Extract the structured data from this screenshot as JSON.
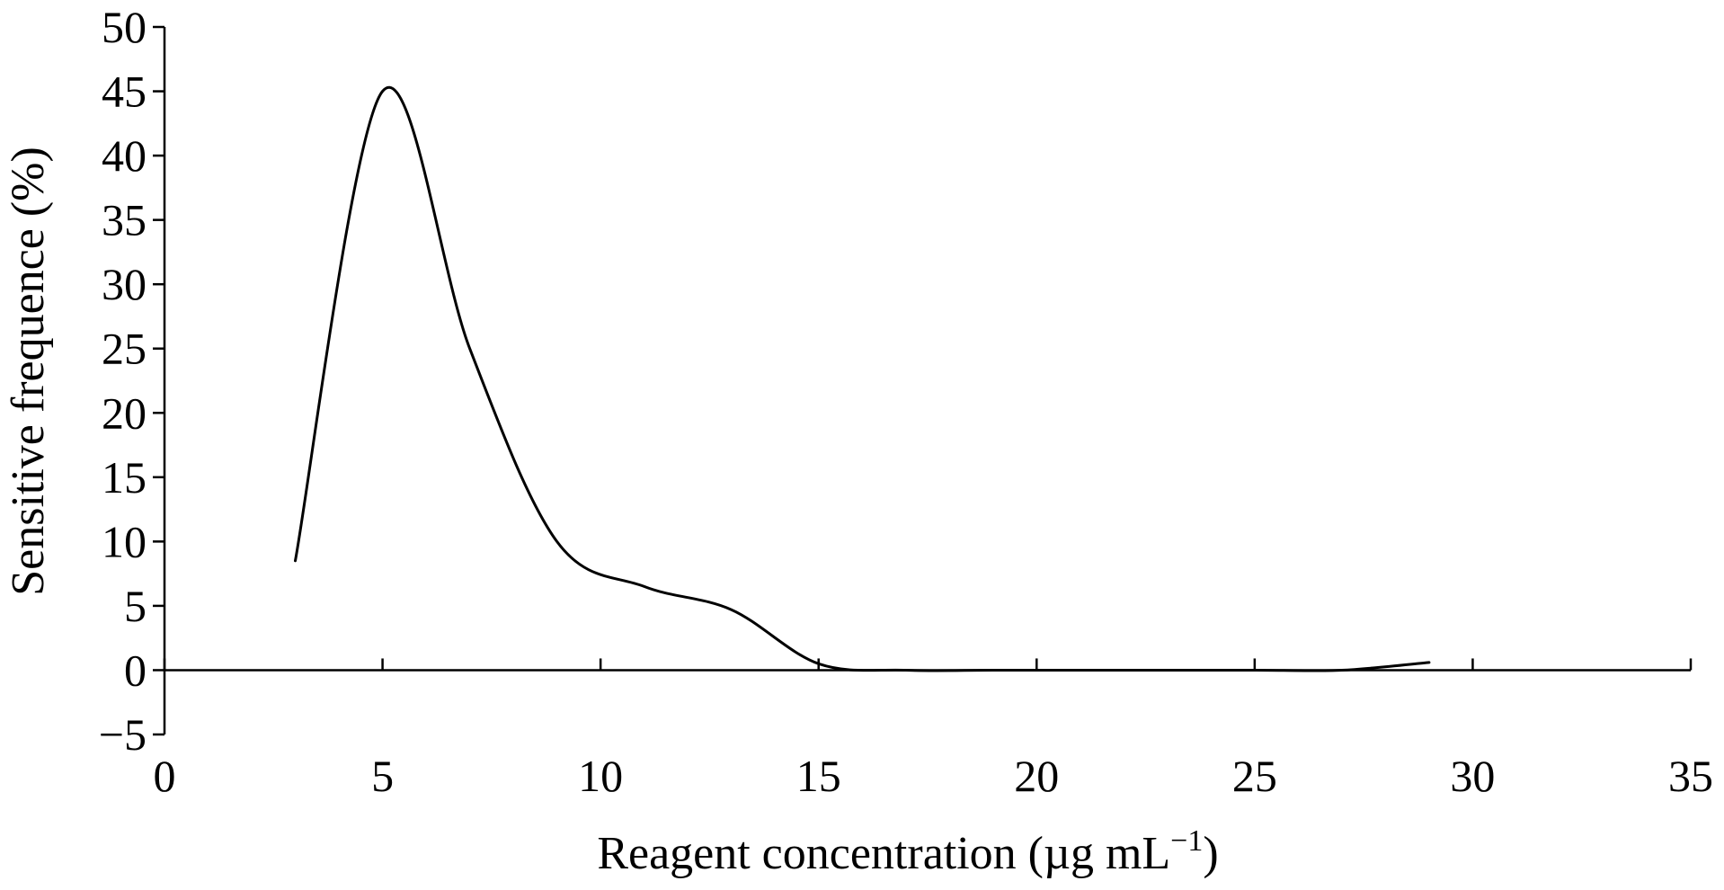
{
  "chart_data": {
    "type": "line",
    "title": "",
    "xlabel": "Reagent concentration (µg mL",
    "xlabel_superscript": "−1",
    "xlabel_close": ")",
    "ylabel": "Sensitive frequence (%)",
    "xlim": [
      0,
      35
    ],
    "ylim": [
      -5,
      50
    ],
    "xticks": [
      0,
      5,
      10,
      15,
      20,
      25,
      30,
      35
    ],
    "yticks": [
      -5,
      0,
      5,
      10,
      15,
      20,
      25,
      30,
      35,
      40,
      45,
      50
    ],
    "xtick_labels": [
      "0",
      "5",
      "10",
      "15",
      "20",
      "25",
      "30",
      "35"
    ],
    "ytick_labels": [
      "−5",
      "0",
      "5",
      "10",
      "15",
      "20",
      "25",
      "30",
      "35",
      "40",
      "45",
      "50"
    ],
    "grid": false,
    "legend": "none",
    "line_color": "#000000",
    "series": [
      {
        "x": [
          3,
          5,
          7,
          9,
          11,
          13,
          15,
          17,
          19,
          21,
          23,
          25,
          27,
          29
        ],
        "y": [
          8.5,
          45,
          25,
          10,
          6.5,
          4.7,
          0.5,
          0,
          0,
          0,
          0,
          0,
          0,
          0.6
        ]
      }
    ]
  }
}
